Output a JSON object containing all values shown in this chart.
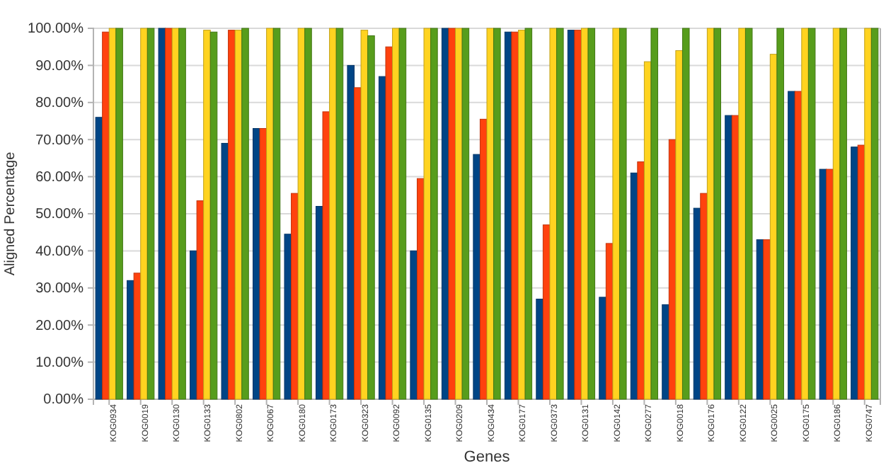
{
  "chart_data": {
    "type": "bar",
    "xlabel": "Genes",
    "ylabel": "Aligned Percentage",
    "categories": [
      "KOG0934",
      "KOG0019",
      "KOG0130",
      "KOG0133",
      "KOG0802",
      "KOG0067",
      "KOG0180",
      "KOG0173",
      "KOG0323",
      "KOG0092",
      "KOG0135",
      "KOG0209",
      "KOG0434",
      "KOG0177",
      "KOG0373",
      "KOG0131",
      "KOG0142",
      "KOG0277",
      "KOG0018",
      "KOG0176",
      "KOG0122",
      "KOG0025",
      "KOG0175",
      "KOG0186",
      "KOG0747"
    ],
    "series": [
      {
        "color": "#004586",
        "values": [
          76,
          32,
          100,
          40,
          69,
          73,
          44.5,
          52,
          90,
          87,
          40,
          100,
          66,
          99,
          27,
          99.5,
          27.5,
          61,
          25.5,
          51.5,
          76.5,
          43,
          83,
          62,
          68
        ]
      },
      {
        "color": "#ff420e",
        "values": [
          99,
          34,
          100,
          53.5,
          99.5,
          73,
          55.5,
          77.5,
          84,
          95,
          59.5,
          100,
          75.5,
          99,
          47,
          99.5,
          42,
          64,
          70,
          55.5,
          76.5,
          43,
          83,
          62,
          68.5
        ]
      },
      {
        "color": "#ffd320",
        "values": [
          100,
          100,
          100,
          99.5,
          99.5,
          100,
          100,
          100,
          99.5,
          100,
          100,
          100,
          100,
          99.5,
          100,
          100,
          100,
          91,
          94,
          100,
          100,
          93,
          100,
          100,
          100
        ]
      },
      {
        "color": "#579d1c",
        "values": [
          100,
          100,
          100,
          99,
          100,
          100,
          100,
          100,
          98,
          100,
          100,
          100,
          100,
          100,
          100,
          100,
          100,
          100,
          100,
          100,
          100,
          100,
          100,
          100,
          100
        ]
      }
    ],
    "ylim": [
      0,
      100
    ],
    "yticks": [
      {
        "value": 0,
        "label": "0.00%"
      },
      {
        "value": 10,
        "label": "10.00%"
      },
      {
        "value": 20,
        "label": "20.00%"
      },
      {
        "value": 30,
        "label": "30.00%"
      },
      {
        "value": 40,
        "label": "40.00%"
      },
      {
        "value": 50,
        "label": "50.00%"
      },
      {
        "value": 60,
        "label": "60.00%"
      },
      {
        "value": 70,
        "label": "70.00%"
      },
      {
        "value": 80,
        "label": "80.00%"
      },
      {
        "value": 90,
        "label": "90.00%"
      },
      {
        "value": 100,
        "label": "100.00%"
      }
    ],
    "grid": "y"
  }
}
